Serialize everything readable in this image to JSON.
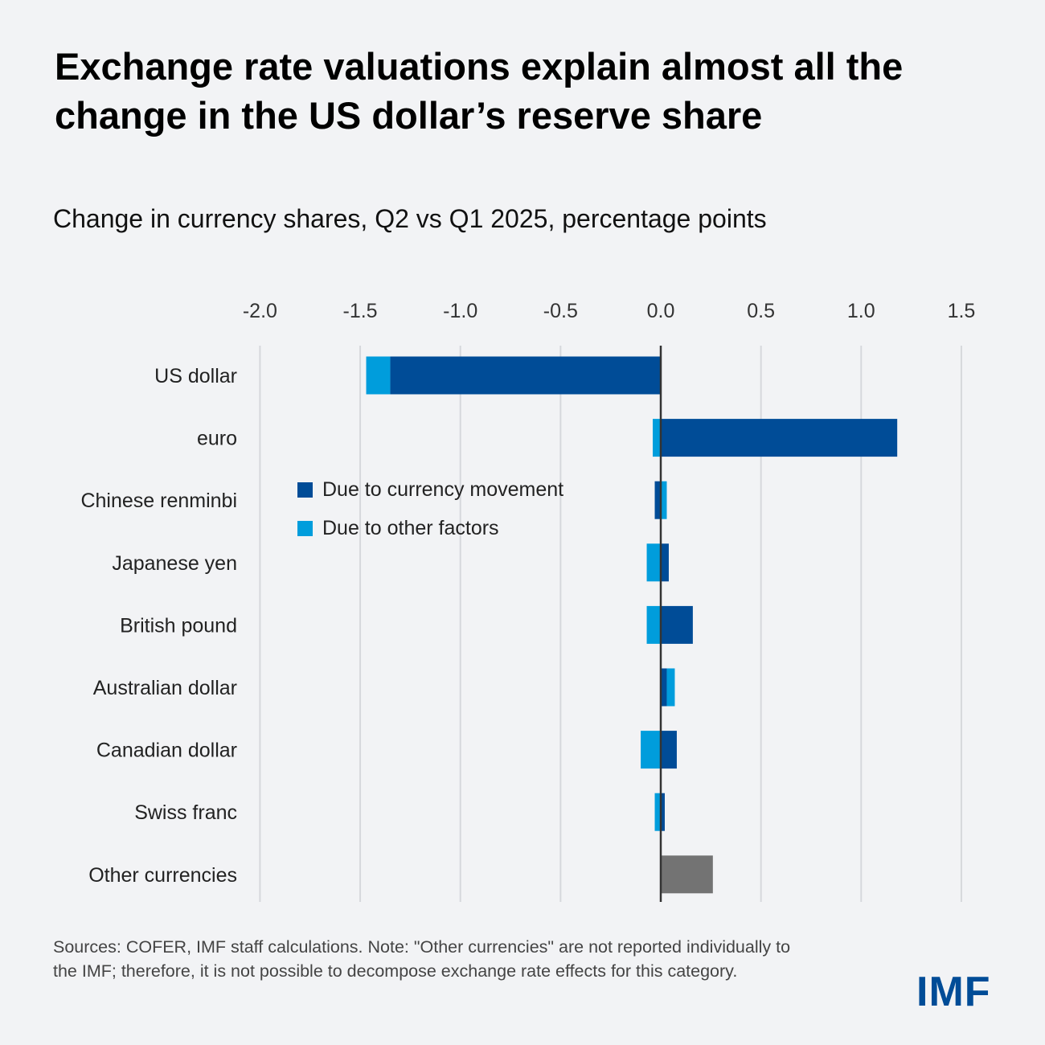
{
  "title": "Exchange rate valuations explain almost all the change in the US dollar’s reserve share",
  "subtitle": "Change in currency shares, Q2 vs Q1 2025, percentage points",
  "note": "Sources: COFER, IMF staff calculations. Note: \"Other currencies\" are not reported individually to the IMF; therefore, it is not possible to decompose exchange rate effects for this category.",
  "logo": "IMF",
  "chart_data": {
    "type": "bar",
    "orientation": "horizontal",
    "stacked": true,
    "title": "Change in currency shares, Q2 vs Q1 2025, percentage points",
    "categories": [
      "US dollar",
      "euro",
      "Chinese renminbi",
      "Japanese yen",
      "British pound",
      "Australian dollar",
      "Canadian dollar",
      "Swiss franc",
      "Other currencies"
    ],
    "series": [
      {
        "name": "Due to currency movement",
        "color": "#004c97",
        "values": [
          -1.35,
          1.18,
          -0.03,
          0.04,
          0.16,
          0.03,
          0.08,
          0.02,
          null
        ]
      },
      {
        "name": "Due to other factors",
        "color": "#009ddc",
        "values": [
          -0.12,
          -0.04,
          0.03,
          -0.07,
          -0.07,
          0.04,
          -0.1,
          -0.03,
          null
        ]
      },
      {
        "name": "",
        "color": "#737373",
        "values": [
          null,
          null,
          null,
          null,
          null,
          null,
          null,
          null,
          0.26
        ]
      }
    ],
    "xlim": [
      -2.0,
      1.5
    ],
    "xticks": [
      "-2.0",
      "-1.5",
      "-1.0",
      "-0.5",
      "0.0",
      "0.5",
      "1.0",
      "1.5"
    ],
    "xtick_values": [
      -2.0,
      -1.5,
      -1.0,
      -0.5,
      0.0,
      0.5,
      1.0,
      1.5
    ],
    "grid": true,
    "axis_position": "top",
    "legend_position": "center-left"
  }
}
